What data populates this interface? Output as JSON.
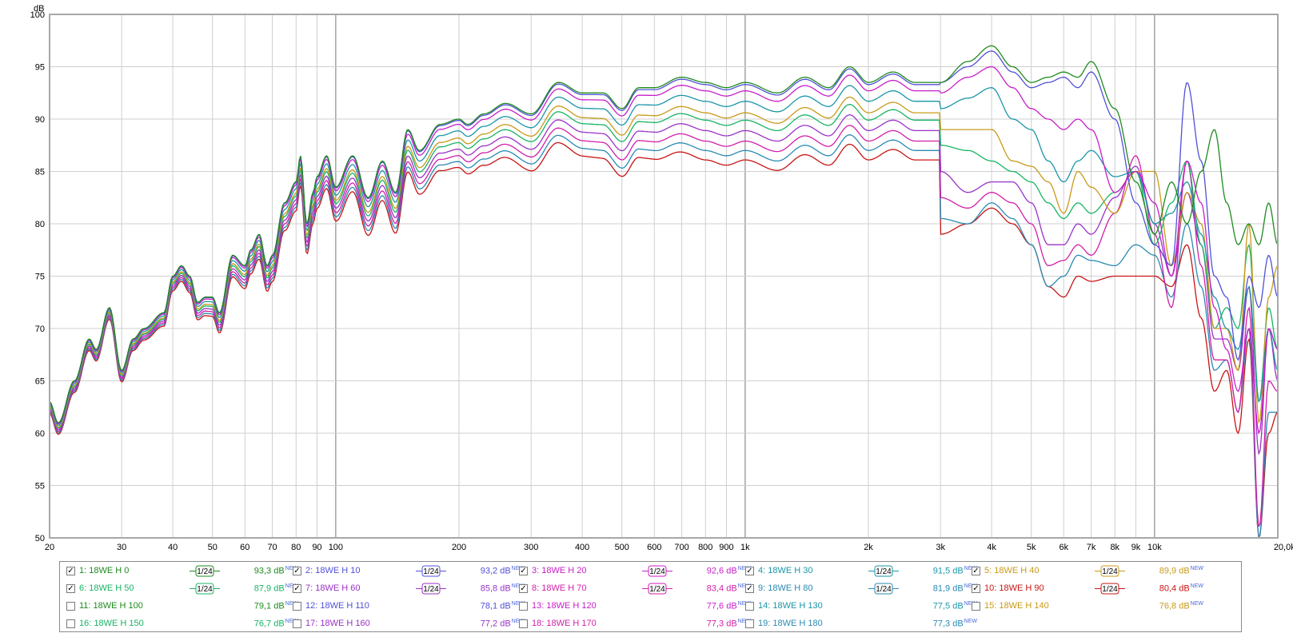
{
  "chart_data": {
    "type": "line",
    "yunit": "dB",
    "x_scale": "log",
    "xlim": [
      20,
      20000
    ],
    "ylim": [
      50,
      100
    ],
    "yticks": [
      "100",
      "95",
      "90",
      "85",
      "80",
      "75",
      "70",
      "65",
      "60",
      "55",
      "50"
    ],
    "xticks": [
      {
        "v": 20,
        "t": "20"
      },
      {
        "v": 30,
        "t": "30"
      },
      {
        "v": 40,
        "t": "40"
      },
      {
        "v": 50,
        "t": "50"
      },
      {
        "v": 60,
        "t": "60"
      },
      {
        "v": 70,
        "t": "70"
      },
      {
        "v": 80,
        "t": "80"
      },
      {
        "v": 90,
        "t": "90"
      },
      {
        "v": 100,
        "t": "100"
      },
      {
        "v": 200,
        "t": "200"
      },
      {
        "v": 300,
        "t": "300"
      },
      {
        "v": 400,
        "t": "400"
      },
      {
        "v": 500,
        "t": "500"
      },
      {
        "v": 600,
        "t": "600"
      },
      {
        "v": 700,
        "t": "700"
      },
      {
        "v": 800,
        "t": "800"
      },
      {
        "v": 900,
        "t": "900"
      },
      {
        "v": 1000,
        "t": "1k"
      },
      {
        "v": 2000,
        "t": "2k"
      },
      {
        "v": 3000,
        "t": "3k"
      },
      {
        "v": 4000,
        "t": "4k"
      },
      {
        "v": 5000,
        "t": "5k"
      },
      {
        "v": 6000,
        "t": "6k"
      },
      {
        "v": 7000,
        "t": "7k"
      },
      {
        "v": 8000,
        "t": "8k"
      },
      {
        "v": 9000,
        "t": "9k"
      },
      {
        "v": 10000,
        "t": "10k"
      },
      {
        "v": 20000,
        "t": "20,0kHz"
      }
    ],
    "base_curve": {
      "x": [
        20,
        21,
        23,
        25,
        26,
        28,
        30,
        32,
        34,
        38,
        40,
        42,
        44,
        46,
        48,
        50,
        52,
        56,
        60,
        62,
        65,
        68,
        70,
        75,
        80,
        82,
        85,
        88,
        90,
        95,
        100,
        110,
        120,
        130,
        140,
        150,
        160,
        180,
        200,
        210,
        230,
        260,
        300,
        350,
        400,
        450,
        500,
        550,
        600,
        700,
        800,
        900,
        1000,
        1200,
        1400,
        1600,
        1800,
        2000,
        2300,
        2600,
        3000
      ],
      "y": [
        63,
        61,
        65,
        69,
        68,
        72,
        66,
        69,
        70,
        71.5,
        75,
        76,
        75,
        72.5,
        73,
        73,
        71.5,
        77,
        76,
        77.5,
        79,
        76,
        77,
        82,
        84,
        86.5,
        80,
        83,
        84.5,
        86.5,
        83.5,
        86.5,
        82.5,
        86,
        83,
        89,
        87,
        89.5,
        90,
        89.5,
        90.5,
        91.5,
        90.5,
        93.5,
        92.5,
        92.5,
        91,
        93,
        93,
        94,
        93.5,
        93,
        93.5,
        92.5,
        94,
        93,
        95,
        93.5,
        94.5,
        93.5,
        93.5
      ]
    },
    "series": [
      {
        "name": "1: 18WE H 0",
        "color": "#1e8a1e",
        "offset": 0,
        "hi": {
          "x": [
            3000,
            3500,
            4000,
            4500,
            5000,
            5500,
            6000,
            6500,
            7000,
            8000,
            9000,
            10000,
            11000,
            12000,
            13000,
            14000,
            15000,
            16000,
            17000,
            18000,
            19000,
            20000
          ],
          "y": [
            93.5,
            95.5,
            97,
            95,
            93.5,
            94,
            94.5,
            94,
            95.5,
            91,
            84,
            79,
            84,
            80,
            85,
            89,
            82,
            78,
            80,
            78,
            82,
            78
          ]
        }
      },
      {
        "name": "2: 18WE H 10",
        "color": "#5050d8",
        "offset": 0.2,
        "hi": {
          "x": [
            3000,
            3500,
            4000,
            4500,
            5000,
            5500,
            6000,
            6500,
            7000,
            8000,
            9000,
            10000,
            11000,
            12000,
            13000,
            14000,
            15000,
            16000,
            17000,
            18000,
            19000,
            20000
          ],
          "y": [
            93.5,
            95,
            96.5,
            94.5,
            93,
            93.5,
            94,
            93,
            94.5,
            90,
            82,
            78,
            76,
            93.5,
            86,
            75,
            73,
            67,
            75,
            72,
            77,
            73
          ]
        }
      },
      {
        "name": "3: 18WE H 20",
        "color": "#c81ec8",
        "offset": 0.8,
        "hi": {
          "x": [
            3000,
            3500,
            4000,
            4500,
            5000,
            5500,
            6000,
            6500,
            7000,
            8000,
            9000,
            10000,
            11000,
            12000,
            13000,
            14000,
            15000,
            16000,
            17000,
            18000,
            19000,
            20000
          ],
          "y": [
            92.5,
            94,
            95,
            93,
            91,
            90,
            89,
            90,
            89,
            83,
            85,
            82,
            75,
            86,
            82,
            72,
            68,
            64,
            70,
            60,
            70,
            68
          ]
        }
      },
      {
        "name": "4: 18WE H 30",
        "color": "#1a96a8",
        "offset": 1.8,
        "hi": {
          "x": [
            3000,
            3500,
            4000,
            4500,
            5000,
            5500,
            6000,
            6500,
            7000,
            8000,
            9000,
            10000,
            11000,
            12000,
            13000,
            14000,
            15000,
            16000,
            17000,
            18000,
            19000,
            20000
          ],
          "y": [
            91,
            92,
            93,
            90,
            89,
            86,
            84,
            86,
            87,
            84.5,
            85,
            80,
            81,
            84,
            79,
            73,
            70,
            68,
            74,
            63,
            70,
            66
          ]
        }
      },
      {
        "name": "5: 18WE H 40",
        "color": "#c89a18",
        "offset": 2.9,
        "hi": {
          "x": [
            3000,
            3500,
            4000,
            4500,
            5000,
            5500,
            6000,
            6500,
            7000,
            8000,
            9000,
            10000,
            11000,
            12000,
            13000,
            14000,
            15000,
            16000,
            17000,
            18000,
            19000,
            20000
          ],
          "y": [
            89,
            89,
            89,
            86,
            85.5,
            84,
            81,
            85,
            83.5,
            81,
            85,
            85,
            76,
            83,
            80,
            70,
            70,
            66,
            80,
            61,
            73,
            76
          ]
        }
      },
      {
        "name": "6: 18WE H 50",
        "color": "#18b464",
        "offset": 3.6,
        "hi": {
          "x": [
            3000,
            3500,
            4000,
            4500,
            5000,
            5500,
            6000,
            6500,
            7000,
            8000,
            9000,
            10000,
            11000,
            12000,
            13000,
            14000,
            15000,
            16000,
            17000,
            18000,
            19000,
            20000
          ],
          "y": [
            87.5,
            87,
            86,
            85,
            84,
            82,
            80.5,
            82,
            81,
            83,
            85,
            78,
            82,
            86,
            78,
            70,
            72,
            70,
            78,
            63,
            72,
            68
          ]
        }
      },
      {
        "name": "7: 18WE H 60",
        "color": "#9a32c8",
        "offset": 4.6,
        "hi": {
          "x": [
            3000,
            3500,
            4000,
            4500,
            5000,
            5500,
            6000,
            6500,
            7000,
            8000,
            9000,
            10000,
            11000,
            12000,
            13000,
            14000,
            15000,
            16000,
            17000,
            18000,
            19000,
            20000
          ],
          "y": [
            85,
            83,
            84,
            84,
            82,
            78,
            78,
            80,
            79,
            82.5,
            85.5,
            80,
            75,
            83,
            78,
            69,
            69,
            66,
            74,
            58,
            70,
            65
          ]
        }
      },
      {
        "name": "8: 18WE H 70",
        "color": "#d21eaa",
        "offset": 5.6,
        "hi": {
          "x": [
            3000,
            3500,
            4000,
            4500,
            5000,
            5500,
            6000,
            6500,
            7000,
            8000,
            9000,
            10000,
            11000,
            12000,
            13000,
            14000,
            15000,
            16000,
            17000,
            18000,
            19000,
            20000
          ],
          "y": [
            82.5,
            81.5,
            83,
            82,
            80,
            76,
            76.5,
            78,
            77,
            81,
            86.5,
            79,
            72,
            86,
            76,
            67,
            67,
            62,
            72,
            51,
            65,
            64
          ]
        }
      },
      {
        "name": "9: 18WE H 80",
        "color": "#2a8ab4",
        "offset": 6.5,
        "hi": {
          "x": [
            3000,
            3500,
            4000,
            4500,
            5000,
            5500,
            6000,
            6500,
            7000,
            8000,
            9000,
            10000,
            11000,
            12000,
            13000,
            14000,
            15000,
            16000,
            17000,
            18000,
            19000,
            20000
          ],
          "y": [
            80.5,
            80,
            82,
            80.5,
            78,
            74,
            75,
            77,
            76.5,
            76,
            78,
            77,
            73,
            80,
            74,
            66,
            67,
            62,
            70,
            50,
            62,
            62
          ]
        }
      },
      {
        "name": "10: 18WE H 90",
        "color": "#c81414",
        "offset": 7.4,
        "hi": {
          "x": [
            3000,
            3500,
            4000,
            4500,
            5000,
            5500,
            6000,
            6500,
            7000,
            8000,
            9000,
            10000,
            11000,
            12000,
            13000,
            14000,
            15000,
            16000,
            17000,
            18000,
            19000,
            20000
          ],
          "y": [
            79,
            80,
            81.5,
            80,
            78,
            74,
            73,
            75,
            74.5,
            75,
            75,
            75,
            74,
            78,
            71,
            64,
            66,
            60,
            69,
            50,
            60,
            62
          ]
        }
      }
    ]
  },
  "y_unit_label": "dB",
  "legend": {
    "new_tag": "NEW",
    "smoothing_label": "1/24",
    "entries": [
      {
        "label": "1: 18WE H 0",
        "value": "93,3 dB",
        "checked": true,
        "smoothed": true,
        "color": "#1e8a1e"
      },
      {
        "label": "2: 18WE H 10",
        "value": "93,2 dB",
        "checked": true,
        "smoothed": true,
        "color": "#5050d8"
      },
      {
        "label": "3: 18WE H 20",
        "value": "92,6 dB",
        "checked": true,
        "smoothed": true,
        "color": "#c81ec8"
      },
      {
        "label": "4: 18WE H 30",
        "value": "91,5 dB",
        "checked": true,
        "smoothed": true,
        "color": "#1a96a8"
      },
      {
        "label": "5: 18WE H 40",
        "value": "89,9 dB",
        "checked": true,
        "smoothed": true,
        "color": "#c89a18"
      },
      {
        "label": "6: 18WE H 50",
        "value": "87,9 dB",
        "checked": true,
        "smoothed": true,
        "color": "#18b464"
      },
      {
        "label": "7: 18WE H 60",
        "value": "85,8 dB",
        "checked": true,
        "smoothed": true,
        "color": "#9a32c8"
      },
      {
        "label": "8: 18WE H 70",
        "value": "83,4 dB",
        "checked": true,
        "smoothed": true,
        "color": "#d21eaa"
      },
      {
        "label": "9: 18WE H 80",
        "value": "81,9 dB",
        "checked": true,
        "smoothed": true,
        "color": "#2a8ab4"
      },
      {
        "label": "10: 18WE H 90",
        "value": "80,4 dB",
        "checked": true,
        "smoothed": true,
        "color": "#c81414"
      },
      {
        "label": "11: 18WE H 100",
        "value": "79,1 dB",
        "checked": false,
        "smoothed": false,
        "color": "#1e8a1e"
      },
      {
        "label": "12: 18WE H 110",
        "value": "78,1 dB",
        "checked": false,
        "smoothed": false,
        "color": "#5050d8"
      },
      {
        "label": "13: 18WE H 120",
        "value": "77,6 dB",
        "checked": false,
        "smoothed": false,
        "color": "#c81ec8"
      },
      {
        "label": "14: 18WE H 130",
        "value": "77,5 dB",
        "checked": false,
        "smoothed": false,
        "color": "#1a96a8"
      },
      {
        "label": "15: 18WE H 140",
        "value": "76,8 dB",
        "checked": false,
        "smoothed": false,
        "color": "#c89a18"
      },
      {
        "label": "16: 18WE H 150",
        "value": "76,7 dB",
        "checked": false,
        "smoothed": false,
        "color": "#18b464"
      },
      {
        "label": "17: 18WE H 160",
        "value": "77,2 dB",
        "checked": false,
        "smoothed": false,
        "color": "#9a32c8"
      },
      {
        "label": "18: 18WE H 170",
        "value": "77,3 dB",
        "checked": false,
        "smoothed": false,
        "color": "#d21eaa"
      },
      {
        "label": "19: 18WE H 180",
        "value": "77,3 dB",
        "checked": false,
        "smoothed": false,
        "color": "#2a8ab4"
      }
    ]
  }
}
